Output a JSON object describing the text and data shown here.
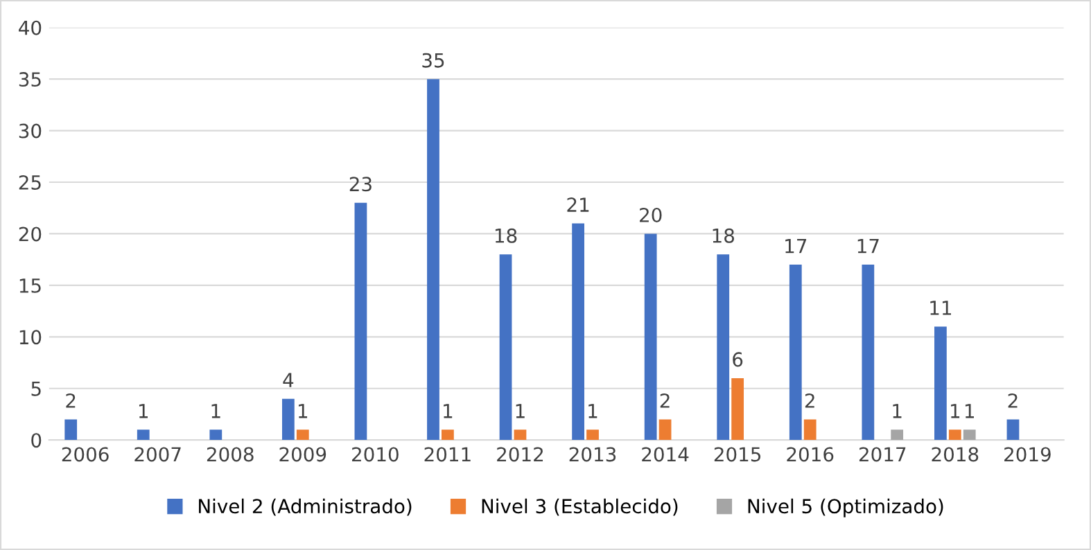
{
  "chart_data": {
    "type": "bar",
    "categories": [
      "2006",
      "2007",
      "2008",
      "2009",
      "2010",
      "2011",
      "2012",
      "2013",
      "2014",
      "2015",
      "2016",
      "2017",
      "2018",
      "2019"
    ],
    "series": [
      {
        "name": "Nivel 2 (Administrado)",
        "color": "#4472c4",
        "values": [
          2,
          1,
          1,
          4,
          23,
          35,
          18,
          21,
          20,
          18,
          17,
          17,
          11,
          2
        ]
      },
      {
        "name": "Nivel 3 (Establecido)",
        "color": "#ed7d31",
        "values": [
          null,
          null,
          null,
          1,
          null,
          1,
          1,
          1,
          2,
          6,
          2,
          null,
          1,
          null
        ]
      },
      {
        "name": "Nivel 5 (Optimizado)",
        "color": "#a5a5a5",
        "values": [
          null,
          null,
          null,
          null,
          null,
          null,
          null,
          null,
          null,
          null,
          null,
          1,
          1,
          null
        ]
      }
    ],
    "ylim": [
      0,
      40
    ],
    "yticks": [
      0,
      5,
      10,
      15,
      20,
      25,
      30,
      35,
      40
    ],
    "grid": "y",
    "legend": "bottom",
    "data_labels": true
  }
}
